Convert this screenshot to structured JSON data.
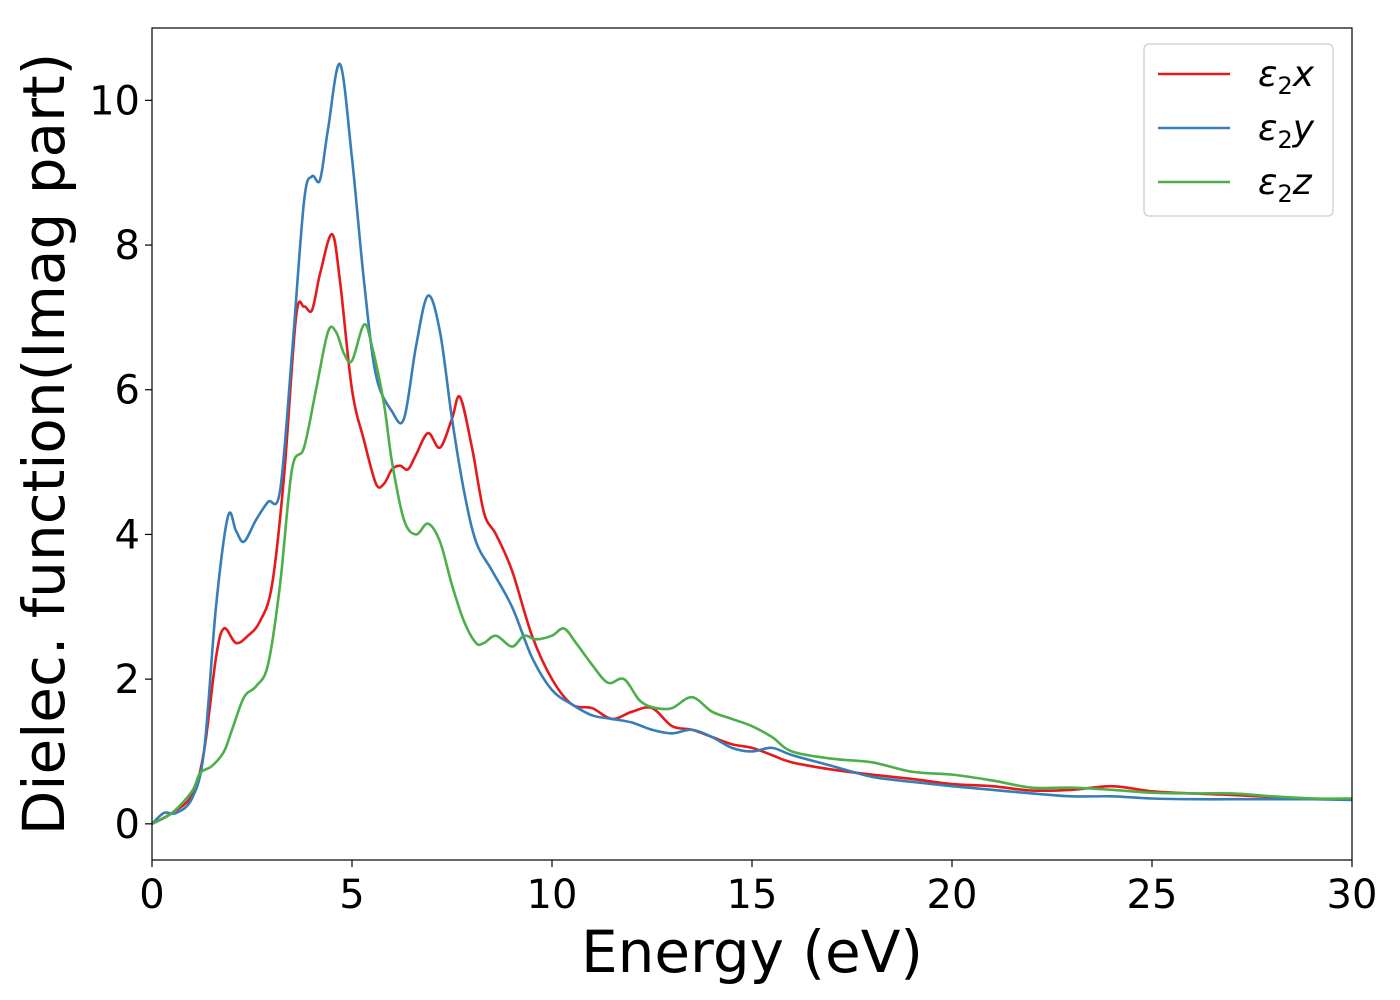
{
  "chart_data": {
    "type": "line",
    "xlabel": "Energy (eV)",
    "ylabel": "Dielec. function(Imag part)",
    "xlim": [
      0,
      30
    ],
    "ylim": [
      -0.5,
      11.0
    ],
    "xticks": [
      0,
      5,
      10,
      15,
      20,
      25,
      30
    ],
    "yticks": [
      0,
      2,
      4,
      6,
      8,
      10
    ],
    "grid": false,
    "legend_position": "top-right",
    "series": [
      {
        "name": "ε2x",
        "legend": {
          "base": "ε",
          "sub": "2",
          "var": "x"
        },
        "color": "#e41a1c",
        "x": [
          0,
          0.5,
          1.0,
          1.3,
          1.6,
          1.8,
          2.1,
          2.4,
          2.7,
          3.0,
          3.3,
          3.6,
          3.8,
          4.0,
          4.2,
          4.5,
          4.7,
          5.0,
          5.3,
          5.6,
          5.8,
          6.0,
          6.2,
          6.4,
          6.6,
          6.9,
          7.2,
          7.5,
          7.7,
          8.0,
          8.3,
          8.6,
          9.0,
          9.5,
          10.0,
          10.5,
          11.0,
          11.5,
          12.0,
          12.5,
          13.0,
          13.5,
          14.0,
          14.5,
          15.0,
          15.5,
          16.0,
          17.0,
          18.0,
          19.0,
          20.0,
          21.0,
          22.0,
          23.0,
          24.0,
          25.0,
          26.0,
          27.0,
          28.0,
          29.0,
          30.0
        ],
        "y": [
          0.0,
          0.15,
          0.4,
          1.0,
          2.3,
          2.7,
          2.5,
          2.6,
          2.8,
          3.3,
          4.8,
          7.0,
          7.15,
          7.1,
          7.6,
          8.15,
          7.5,
          6.0,
          5.3,
          4.7,
          4.7,
          4.9,
          4.95,
          4.9,
          5.1,
          5.4,
          5.2,
          5.6,
          5.9,
          5.2,
          4.3,
          4.0,
          3.5,
          2.6,
          2.0,
          1.65,
          1.6,
          1.45,
          1.55,
          1.6,
          1.35,
          1.3,
          1.2,
          1.1,
          1.05,
          0.95,
          0.85,
          0.75,
          0.68,
          0.62,
          0.55,
          0.52,
          0.46,
          0.47,
          0.52,
          0.45,
          0.42,
          0.4,
          0.37,
          0.35,
          0.34
        ]
      },
      {
        "name": "ε2y",
        "legend": {
          "base": "ε",
          "sub": "2",
          "var": "y"
        },
        "color": "#377eb8",
        "x": [
          0,
          0.3,
          0.6,
          1.0,
          1.3,
          1.6,
          1.9,
          2.1,
          2.3,
          2.6,
          2.9,
          3.2,
          3.5,
          3.8,
          4.0,
          4.2,
          4.4,
          4.7,
          5.0,
          5.3,
          5.6,
          6.0,
          6.3,
          6.6,
          6.9,
          7.2,
          7.5,
          7.8,
          8.1,
          8.5,
          9.0,
          9.5,
          10.0,
          10.5,
          11.0,
          11.5,
          12.0,
          12.5,
          13.0,
          13.5,
          14.0,
          14.5,
          15.0,
          15.5,
          16.0,
          17.0,
          18.0,
          19.0,
          20.0,
          21.0,
          22.0,
          23.0,
          24.0,
          25.0,
          26.0,
          27.0,
          28.0,
          29.0,
          30.0
        ],
        "y": [
          0.0,
          0.15,
          0.15,
          0.35,
          1.0,
          3.0,
          4.25,
          4.05,
          3.9,
          4.2,
          4.45,
          4.6,
          6.5,
          8.6,
          8.95,
          8.9,
          9.6,
          10.5,
          9.2,
          7.5,
          6.2,
          5.7,
          5.6,
          6.6,
          7.3,
          6.8,
          5.6,
          4.6,
          3.9,
          3.5,
          3.0,
          2.3,
          1.85,
          1.65,
          1.5,
          1.45,
          1.4,
          1.3,
          1.25,
          1.3,
          1.2,
          1.05,
          1.0,
          1.05,
          0.95,
          0.8,
          0.65,
          0.58,
          0.52,
          0.47,
          0.42,
          0.38,
          0.38,
          0.35,
          0.34,
          0.34,
          0.34,
          0.34,
          0.33
        ]
      },
      {
        "name": "ε2z",
        "legend": {
          "base": "ε",
          "sub": "2",
          "var": "z"
        },
        "color": "#4daf4a",
        "x": [
          0,
          0.5,
          1.0,
          1.2,
          1.5,
          1.8,
          2.0,
          2.3,
          2.6,
          2.9,
          3.2,
          3.5,
          3.8,
          4.1,
          4.4,
          4.6,
          4.8,
          5.0,
          5.3,
          5.5,
          5.8,
          6.0,
          6.3,
          6.6,
          6.9,
          7.2,
          7.5,
          7.8,
          8.1,
          8.3,
          8.6,
          9.0,
          9.3,
          9.6,
          10.0,
          10.3,
          10.6,
          11.0,
          11.4,
          11.8,
          12.2,
          12.6,
          13.0,
          13.5,
          14.0,
          14.5,
          15.0,
          15.5,
          16.0,
          17.0,
          18.0,
          19.0,
          20.0,
          21.0,
          22.0,
          23.0,
          24.0,
          25.0,
          26.0,
          27.0,
          28.0,
          29.0,
          30.0
        ],
        "y": [
          0.0,
          0.15,
          0.45,
          0.7,
          0.8,
          1.0,
          1.3,
          1.75,
          1.9,
          2.2,
          3.3,
          4.9,
          5.2,
          6.0,
          6.8,
          6.8,
          6.5,
          6.4,
          6.9,
          6.6,
          5.8,
          5.0,
          4.2,
          4.0,
          4.15,
          3.9,
          3.3,
          2.8,
          2.5,
          2.5,
          2.6,
          2.45,
          2.6,
          2.55,
          2.6,
          2.7,
          2.5,
          2.2,
          1.95,
          2.0,
          1.7,
          1.6,
          1.6,
          1.75,
          1.55,
          1.45,
          1.35,
          1.2,
          1.0,
          0.9,
          0.85,
          0.72,
          0.68,
          0.6,
          0.5,
          0.5,
          0.47,
          0.43,
          0.42,
          0.42,
          0.38,
          0.35,
          0.35
        ]
      }
    ]
  }
}
